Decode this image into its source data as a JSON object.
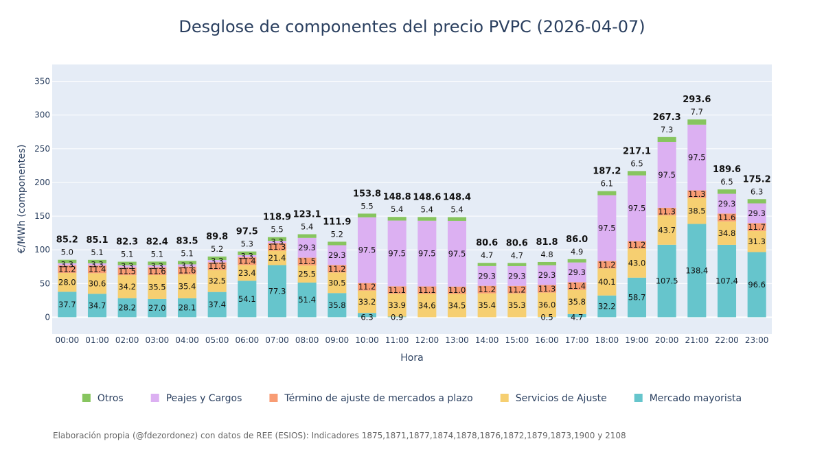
{
  "chart_data": {
    "type": "bar",
    "stacked": true,
    "title": "Desglose de componentes del precio PVPC (2026-04-07)",
    "xlabel": "Hora",
    "ylabel": "€/MWh (componentes)",
    "ylim": [
      -25,
      375
    ],
    "yticks": [
      0,
      50,
      100,
      150,
      200,
      250,
      300,
      350
    ],
    "legend_position": "bottom",
    "grid": true,
    "categories": [
      "00:00",
      "01:00",
      "02:00",
      "03:00",
      "04:00",
      "05:00",
      "06:00",
      "07:00",
      "08:00",
      "09:00",
      "10:00",
      "11:00",
      "12:00",
      "13:00",
      "14:00",
      "15:00",
      "16:00",
      "17:00",
      "18:00",
      "19:00",
      "20:00",
      "21:00",
      "22:00",
      "23:00"
    ],
    "series": [
      {
        "name": "Mercado mayorista",
        "color": "#66c5cc",
        "values": [
          37.7,
          34.7,
          28.2,
          27.0,
          28.1,
          37.4,
          54.1,
          77.3,
          51.4,
          35.8,
          6.3,
          0.9,
          0.0,
          0.0,
          0.0,
          0.0,
          0.5,
          4.7,
          32.2,
          58.7,
          107.5,
          138.4,
          107.4,
          96.6
        ]
      },
      {
        "name": "Servicios de Ajuste",
        "color": "#f6cf71",
        "values": [
          28.0,
          30.6,
          34.2,
          35.5,
          35.4,
          32.5,
          23.4,
          21.4,
          25.5,
          30.5,
          33.2,
          33.9,
          34.6,
          34.5,
          35.4,
          35.3,
          36.0,
          35.8,
          40.1,
          43.0,
          43.7,
          38.5,
          34.8,
          31.3
        ]
      },
      {
        "name": "Término de ajuste de mercados a plazo",
        "color": "#f89c74",
        "values": [
          11.2,
          11.4,
          11.5,
          11.6,
          11.6,
          11.6,
          11.4,
          11.3,
          11.5,
          11.2,
          11.2,
          11.1,
          11.1,
          11.0,
          11.2,
          11.2,
          11.3,
          11.4,
          11.2,
          11.2,
          11.3,
          11.3,
          11.6,
          11.7
        ]
      },
      {
        "name": "Peajes y Cargos",
        "color": "#dcb0f2",
        "values": [
          3.3,
          3.3,
          3.3,
          3.3,
          3.3,
          3.3,
          3.3,
          3.3,
          29.3,
          29.3,
          97.5,
          97.5,
          97.5,
          97.5,
          29.3,
          29.3,
          29.3,
          29.3,
          97.5,
          97.5,
          97.5,
          97.5,
          29.3,
          29.3
        ]
      },
      {
        "name": "Otros",
        "color": "#87c55f",
        "values": [
          5.0,
          5.1,
          5.1,
          5.1,
          5.1,
          5.2,
          5.3,
          5.5,
          5.4,
          5.2,
          5.5,
          5.4,
          5.4,
          5.4,
          4.7,
          4.7,
          4.8,
          4.9,
          6.1,
          6.5,
          7.3,
          7.7,
          6.5,
          6.3
        ]
      }
    ],
    "segment_labels": {
      "Mercado mayorista": [
        "37.7",
        "34.7",
        "28.2",
        "27.0",
        "28.1",
        "37.4",
        "54.1",
        "77.3",
        "51.4",
        "35.8",
        "6.3",
        "0.9",
        "",
        "",
        "",
        "",
        "0.5",
        "4.7",
        "32.2",
        "58.7",
        "107.5",
        "138.4",
        "107.4",
        "96.6"
      ],
      "Servicios de Ajuste": [
        "28.0",
        "30.6",
        "34.2",
        "35.5",
        "35.4",
        "32.5",
        "23.4",
        "21.4",
        "25.5",
        "30.5",
        "33.2",
        "33.9",
        "34.6",
        "34.5",
        "35.4",
        "35.3",
        "36.0",
        "35.8",
        "40.1",
        "43.0",
        "43.7",
        "38.5",
        "34.8",
        "31.3"
      ],
      "Término de ajuste de mercados a plazo": [
        "11.2",
        "11.4",
        "11.5",
        "11.6",
        "11.6",
        "11.6",
        "11.4",
        "11.3",
        "11.5",
        "11.2",
        "11.2",
        "11.1",
        "11.1",
        "11.0",
        "11.2",
        "11.2",
        "11.3",
        "11.4",
        "11.2",
        "11.2",
        "11.3",
        "11.3",
        "11.6",
        "11.7"
      ],
      "Peajes y Cargos": [
        "3.3",
        "3.3",
        "3.3",
        "3.3",
        "3.3",
        "3.3",
        "3.3",
        "3.3",
        "29.3",
        "29.3",
        "97.5",
        "97.5",
        "97.5",
        "97.5",
        "29.3",
        "29.3",
        "29.3",
        "29.3",
        "97.5",
        "97.5",
        "97.5",
        "97.5",
        "29.3",
        "29.3"
      ],
      "Otros": [
        "5.0",
        "5.1",
        "5.1",
        "5.1",
        "5.1",
        "5.2",
        "5.3",
        "5.5",
        "5.4",
        "5.2",
        "5.5",
        "5.4",
        "5.4",
        "5.4",
        "4.7",
        "4.7",
        "4.8",
        "4.9",
        "6.1",
        "6.5",
        "7.3",
        "7.7",
        "6.5",
        "6.3"
      ]
    },
    "totals": [
      "85.2",
      "85.1",
      "82.3",
      "82.4",
      "83.5",
      "89.8",
      "97.5",
      "118.9",
      "123.1",
      "111.9",
      "153.8",
      "148.8",
      "148.6",
      "148.4",
      "80.6",
      "80.6",
      "81.8",
      "86.0",
      "187.2",
      "217.1",
      "267.3",
      "293.6",
      "189.6",
      "175.2"
    ],
    "legend_order": [
      "Otros",
      "Peajes y Cargos",
      "Término de ajuste de mercados a plazo",
      "Servicios de Ajuste",
      "Mercado mayorista"
    ],
    "footnote": "Elaboración propia (@fdezordonez) con datos de REE (ESIOS): Indicadores 1875,1871,1877,1874,1878,1876,1872,1879,1873,1900 y 2108"
  }
}
